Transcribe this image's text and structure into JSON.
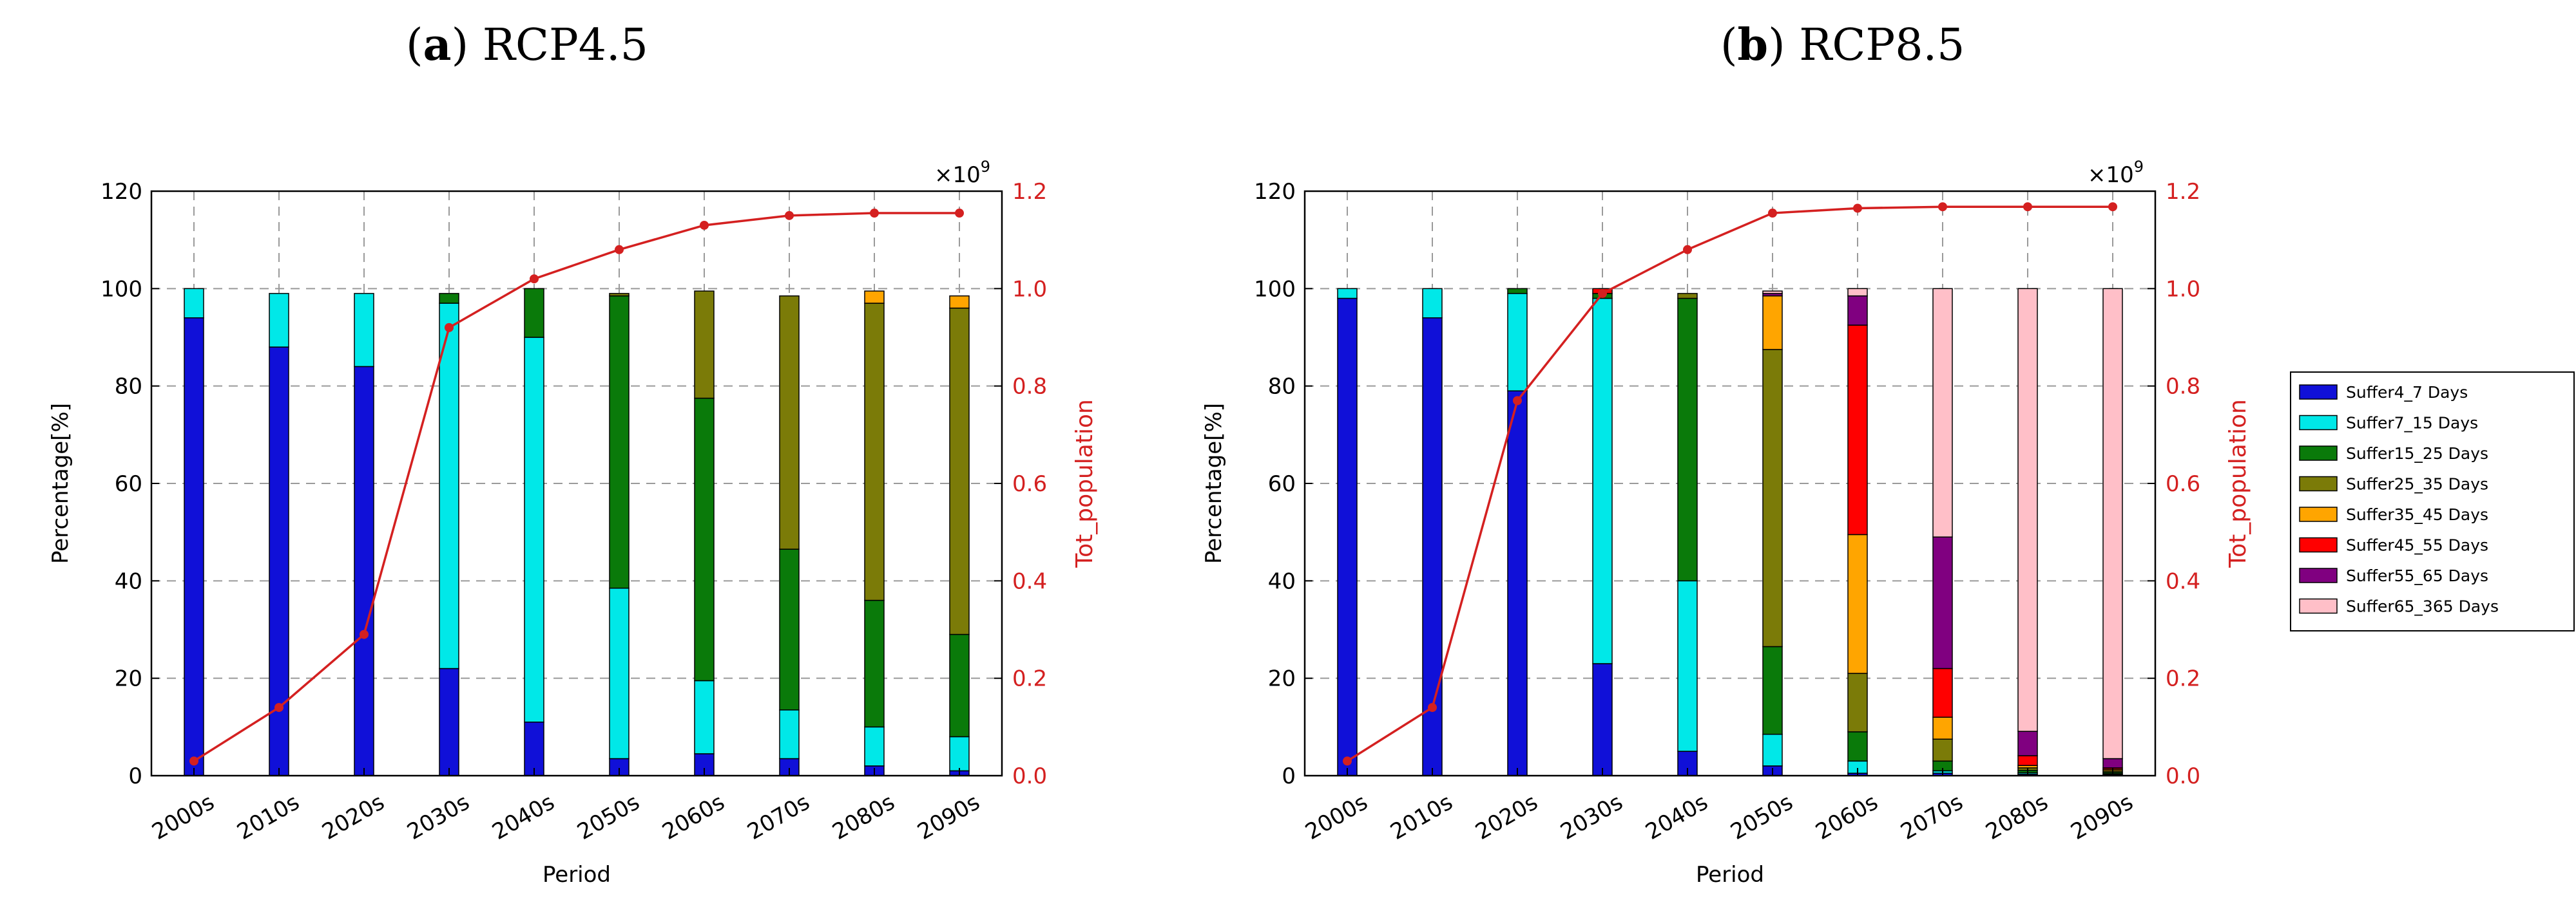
{
  "chart_data": [
    {
      "type": "bar",
      "panel_letter": "a",
      "panel_label": "RCP4.5",
      "xlabel": "Period",
      "ylabel": "Percentage[%]",
      "y2label": "Tot_population",
      "y2_exponent": "×10",
      "y2_exponent_power": "9",
      "categories": [
        "2000s",
        "2010s",
        "2020s",
        "2030s",
        "2040s",
        "2050s",
        "2060s",
        "2070s",
        "2080s",
        "2090s"
      ],
      "ylim": [
        0,
        120
      ],
      "y2lim": [
        0,
        1.2
      ],
      "yticks": [
        "0",
        "20",
        "40",
        "60",
        "80",
        "100",
        "120"
      ],
      "y2ticks": [
        "0.0",
        "0.2",
        "0.4",
        "0.6",
        "0.8",
        "1.0",
        "1.2"
      ],
      "grid": true,
      "stacked": true,
      "series": [
        {
          "name": "Suffer4_7 Days",
          "values": [
            94,
            88,
            84,
            22,
            11,
            3.5,
            4.5,
            3.5,
            2,
            1
          ]
        },
        {
          "name": "Suffer7_15 Days",
          "values": [
            6,
            11,
            15,
            75,
            79,
            35,
            15,
            10,
            8,
            7
          ]
        },
        {
          "name": "Suffer15_25 Days",
          "values": [
            0,
            0,
            0,
            2,
            10,
            60,
            58,
            33,
            26,
            21
          ]
        },
        {
          "name": "Suffer25_35 Days",
          "values": [
            0,
            0,
            0,
            0,
            0,
            0.5,
            22,
            52,
            61,
            67
          ]
        },
        {
          "name": "Suffer35_45 Days",
          "values": [
            0,
            0,
            0,
            0,
            0,
            0,
            0,
            0,
            2.5,
            2.5
          ]
        },
        {
          "name": "Suffer45_55 Days",
          "values": [
            0,
            0,
            0,
            0,
            0,
            0,
            0,
            0,
            0,
            0
          ]
        },
        {
          "name": "Suffer55_65 Days",
          "values": [
            0,
            0,
            0,
            0,
            0,
            0,
            0,
            0,
            0,
            0
          ]
        },
        {
          "name": "Suffer65_365 Days",
          "values": [
            0,
            0,
            0,
            0,
            0,
            0,
            0,
            0,
            0,
            0
          ]
        }
      ],
      "line": {
        "name": "Tot_population",
        "values": [
          0.03,
          0.14,
          0.29,
          0.92,
          1.02,
          1.08,
          1.13,
          1.15,
          1.155,
          1.155
        ]
      }
    },
    {
      "type": "bar",
      "panel_letter": "b",
      "panel_label": "RCP8.5",
      "xlabel": "Period",
      "ylabel": "Percentage[%]",
      "y2label": "Tot_population",
      "y2_exponent": "×10",
      "y2_exponent_power": "9",
      "categories": [
        "2000s",
        "2010s",
        "2020s",
        "2030s",
        "2040s",
        "2050s",
        "2060s",
        "2070s",
        "2080s",
        "2090s"
      ],
      "ylim": [
        0,
        120
      ],
      "y2lim": [
        0,
        1.2
      ],
      "yticks": [
        "0",
        "20",
        "40",
        "60",
        "80",
        "100",
        "120"
      ],
      "y2ticks": [
        "0.0",
        "0.2",
        "0.4",
        "0.6",
        "0.8",
        "1.0",
        "1.2"
      ],
      "grid": true,
      "stacked": true,
      "series": [
        {
          "name": "Suffer4_7 Days",
          "values": [
            98,
            94,
            79,
            23,
            5,
            2,
            0.5,
            0.5,
            0.3,
            0.2
          ]
        },
        {
          "name": "Suffer7_15 Days",
          "values": [
            2,
            6,
            20,
            75,
            35,
            6.5,
            2.5,
            0.5,
            0.3,
            0.2
          ]
        },
        {
          "name": "Suffer15_25 Days",
          "values": [
            0,
            0,
            1,
            1,
            58,
            18,
            6,
            2,
            0.5,
            0.3
          ]
        },
        {
          "name": "Suffer25_35 Days",
          "values": [
            0,
            0,
            0,
            0,
            1,
            61,
            12,
            4.5,
            0.5,
            0.3
          ]
        },
        {
          "name": "Suffer35_45 Days",
          "values": [
            0,
            0,
            0,
            0,
            0,
            11,
            28.5,
            4.5,
            0.5,
            0.3
          ]
        },
        {
          "name": "Suffer45_55 Days",
          "values": [
            0,
            0,
            0,
            1,
            0,
            0,
            43,
            10,
            2,
            0.3
          ]
        },
        {
          "name": "Suffer55_65 Days",
          "values": [
            0,
            0,
            0,
            0,
            0,
            0.5,
            6,
            27,
            5,
            1.9
          ]
        },
        {
          "name": "Suffer65_365 Days",
          "values": [
            0,
            0,
            0,
            0,
            0,
            0.5,
            1.5,
            51,
            90.9,
            96.5
          ]
        }
      ],
      "line": {
        "name": "Tot_population",
        "values": [
          0.03,
          0.14,
          0.77,
          0.99,
          1.08,
          1.155,
          1.165,
          1.168,
          1.168,
          1.168
        ]
      }
    }
  ],
  "legend": {
    "position": "right",
    "items": [
      {
        "label": "Suffer4_7 Days",
        "color": "#1010d8"
      },
      {
        "label": "Suffer7_15 Days",
        "color": "#00e8e8"
      },
      {
        "label": "Suffer15_25 Days",
        "color": "#0a7a0a"
      },
      {
        "label": "Suffer25_35 Days",
        "color": "#7b7b08"
      },
      {
        "label": "Suffer35_45 Days",
        "color": "#ffa500"
      },
      {
        "label": "Suffer45_55 Days",
        "color": "#ff0000"
      },
      {
        "label": "Suffer55_65 Days",
        "color": "#800080"
      },
      {
        "label": "Suffer65_365 Days",
        "color": "#ffbfc8"
      }
    ]
  },
  "line_color": "#d42020"
}
